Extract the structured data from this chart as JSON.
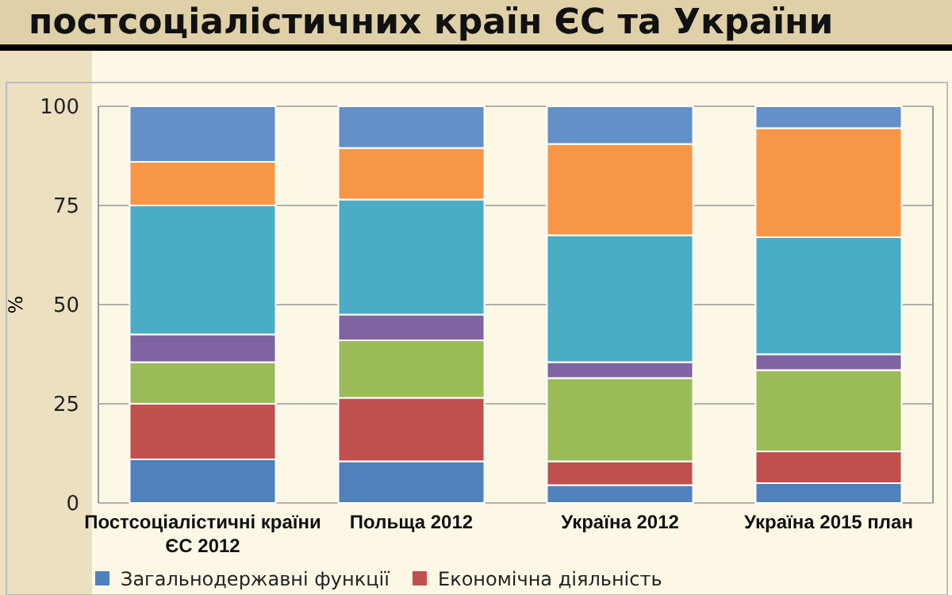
{
  "chart_data": {
    "type": "bar",
    "stacked": true,
    "title": "постсоціалістичних країн ЄС та України",
    "ylabel": "%",
    "categories": [
      "Постсоціалістичні країни\nЄС 2012",
      "Польща 2012",
      "Україна 2012",
      "Україна 2015 план"
    ],
    "series": [
      {
        "name": "Загальнодержавні функції",
        "color": "#4f81bd",
        "values": [
          11,
          10.5,
          4.5,
          5
        ]
      },
      {
        "name": "Економічна діяльність",
        "color": "#c0504d",
        "values": [
          14,
          16,
          6,
          8
        ]
      },
      {
        "color": "#9bbb59",
        "values": [
          10.5,
          14.5,
          21,
          20.5
        ]
      },
      {
        "color": "#8064a2",
        "values": [
          7,
          6.5,
          4,
          4
        ]
      },
      {
        "color": "#4bacc6",
        "values": [
          32.5,
          29,
          32,
          29.5
        ]
      },
      {
        "color": "#f79646",
        "values": [
          11,
          13,
          23,
          27.5
        ]
      },
      {
        "color": "#6490c8",
        "values": [
          14,
          10.5,
          9.5,
          5.5
        ]
      }
    ],
    "ylim": [
      0,
      100
    ],
    "yticks": [
      0,
      25,
      50,
      75,
      100
    ],
    "grid": "y",
    "legend": "bottom"
  }
}
